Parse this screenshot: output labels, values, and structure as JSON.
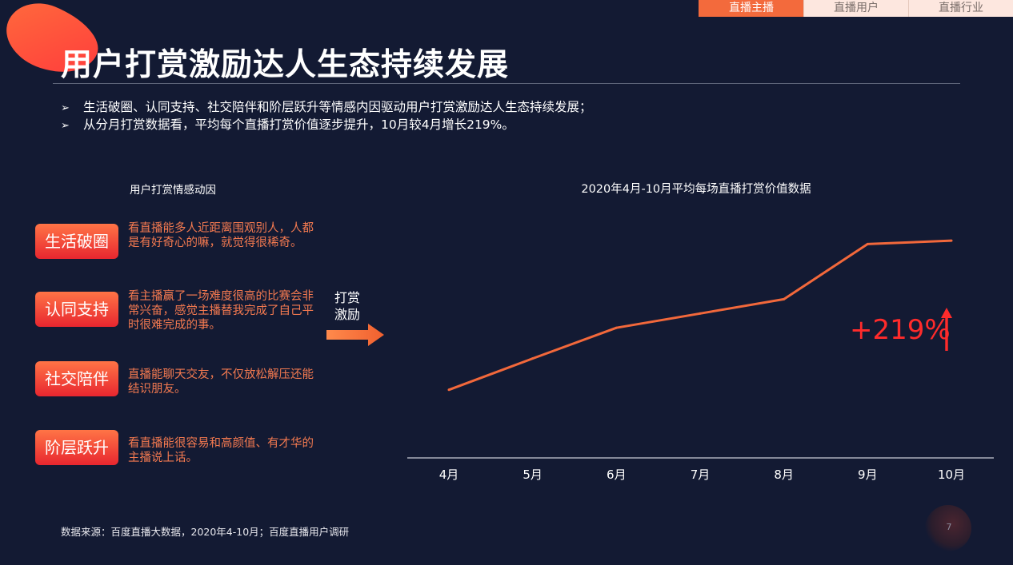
{
  "nav": {
    "tabs": [
      {
        "label": "直播主播",
        "active": true
      },
      {
        "label": "直播用户",
        "active": false
      },
      {
        "label": "直播行业",
        "active": false
      }
    ]
  },
  "page": {
    "title": "用户打赏激励达人生态持续发展",
    "bullets": [
      "生活破圈、认同支持、社交陪伴和阶层跃升等情感内因驱动用户打赏激励达人生态持续发展；",
      "从分月打赏数据看，平均每个直播打赏价值逐步提升，10月较4月增长219%。"
    ],
    "bullet_glyph": "➢",
    "source": "数据来源：百度直播大数据，2020年4-10月；百度直播用户调研",
    "page_number": "7"
  },
  "motives": {
    "title": "用户打赏情感动因",
    "items": [
      {
        "label": "生活破圈",
        "desc": "看直播能多人近距离围观别人，人都是有好奇心的嘛，就觉得很稀奇。"
      },
      {
        "label": "认同支持",
        "desc": "看主播赢了一场难度很高的比赛会非常兴奋，感觉主播替我完成了自己平时很难完成的事。"
      },
      {
        "label": "社交陪伴",
        "desc": "直播能聊天交友，不仅放松解压还能结识朋友。"
      },
      {
        "label": "阶层跃升",
        "desc": "看直播能很容易和高颜值、有才华的主播说上话。"
      }
    ]
  },
  "incentive_label": [
    "打赏",
    "激励"
  ],
  "growth_label": "+219%",
  "colors": {
    "background": "#131a33",
    "accent": "#f36a3c",
    "line": "#f2683b",
    "growth": "#ff2b2b",
    "desc_text": "#f47a50"
  },
  "chart_data": {
    "type": "line",
    "title": "2020年4月-10月平均每场直播打赏价值数据",
    "categories": [
      "4月",
      "5月",
      "6月",
      "7月",
      "8月",
      "9月",
      "10月"
    ],
    "values": [
      100,
      146,
      191,
      212,
      233,
      314,
      319
    ],
    "ylim": [
      0,
      420
    ],
    "y_axis_visible": false,
    "grid": false,
    "annotation": "+219%"
  }
}
